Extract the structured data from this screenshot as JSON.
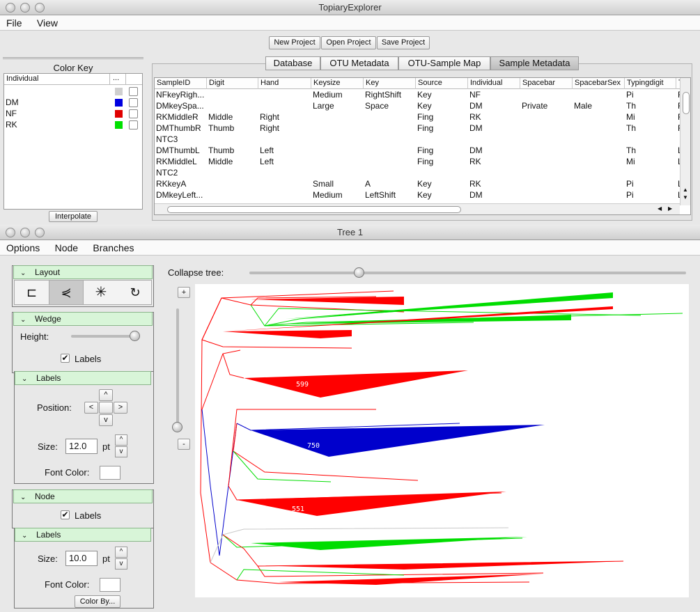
{
  "top_window": {
    "title": "TopiaryExplorer",
    "menu": [
      "File",
      "View"
    ],
    "buttons": {
      "new": "New Project",
      "open": "Open Project",
      "save": "Save Project"
    },
    "tabs": [
      "Database",
      "OTU Metadata",
      "OTU-Sample Map",
      "Sample Metadata"
    ],
    "active_tab": "Sample Metadata",
    "color_key": {
      "title": "Color Key",
      "header": "Individual",
      "header_more": "...",
      "items": [
        {
          "label": "",
          "color": "#cfcfcf"
        },
        {
          "label": "DM",
          "color": "#0000e0"
        },
        {
          "label": "NF",
          "color": "#e00000"
        },
        {
          "label": "RK",
          "color": "#00e000"
        }
      ],
      "interpolate": "Interpolate"
    },
    "table": {
      "columns": [
        "SampleID",
        "Digit",
        "Hand",
        "Keysize",
        "Key",
        "Source",
        "Individual",
        "Spacebar",
        "SpacebarSex",
        "Typingdigit",
        "T"
      ],
      "rows": [
        [
          "NFkeyRigh...",
          "",
          "",
          "Medium",
          "RightShift",
          "Key",
          "NF",
          "",
          "",
          "Pi",
          "R"
        ],
        [
          "DMkeySpa...",
          "",
          "",
          "Large",
          "Space",
          "Key",
          "DM",
          "Private",
          "Male",
          "Th",
          "R"
        ],
        [
          "RKMiddleR",
          "Middle",
          "Right",
          "",
          "",
          "Fing",
          "RK",
          "",
          "",
          "Mi",
          "R"
        ],
        [
          "DMThumbR",
          "Thumb",
          "Right",
          "",
          "",
          "Fing",
          "DM",
          "",
          "",
          "Th",
          "R"
        ],
        [
          "NTC3",
          "",
          "",
          "",
          "",
          "",
          "",
          "",
          "",
          "",
          ""
        ],
        [
          "DMThumbL",
          "Thumb",
          "Left",
          "",
          "",
          "Fing",
          "DM",
          "",
          "",
          "Th",
          "L"
        ],
        [
          "RKMiddleL",
          "Middle",
          "Left",
          "",
          "",
          "Fing",
          "RK",
          "",
          "",
          "Mi",
          "L"
        ],
        [
          "NTC2",
          "",
          "",
          "",
          "",
          "",
          "",
          "",
          "",
          "",
          ""
        ],
        [
          "RKkeyA",
          "",
          "",
          "Small",
          "A",
          "Key",
          "RK",
          "",
          "",
          "Pi",
          "L"
        ],
        [
          "DMkeyLeft...",
          "",
          "",
          "Medium",
          "LeftShift",
          "Key",
          "DM",
          "",
          "",
          "Pi",
          "L"
        ]
      ]
    }
  },
  "tree_window": {
    "title": "Tree 1",
    "menu": [
      "Options",
      "Node",
      "Branches"
    ],
    "collapse_label": "Collapse tree:",
    "collapse_value": 0.25,
    "zoom_in": "+",
    "zoom_out": "-",
    "layout_panel": {
      "title": "Layout",
      "icons": [
        "rectangular-layout-icon",
        "slanted-layout-icon",
        "radial-layout-icon",
        "polar-layout-icon"
      ]
    },
    "wedge_panel": {
      "title": "Wedge",
      "height_label": "Height:",
      "height_value": 1.0,
      "labels_checkbox": "Labels",
      "labels_checked": true
    },
    "wedge_labels_panel": {
      "title": "Labels",
      "position_label": "Position:",
      "up": "^",
      "down": "v",
      "left": "<",
      "right": ">",
      "size_label": "Size:",
      "size_value": "12.0",
      "unit": "pt",
      "font_color_label": "Font Color:"
    },
    "node_panel": {
      "title": "Node",
      "labels_checkbox": "Labels",
      "labels_checked": true
    },
    "node_labels_panel": {
      "title": "Labels",
      "size_label": "Size:",
      "size_value": "10.0",
      "unit": "pt",
      "font_color_label": "Font Color:",
      "color_by": "Color By..."
    },
    "tree_labels": [
      "599",
      "750",
      "551"
    ],
    "colors": {
      "red": "#ff0000",
      "blue": "#0000cc",
      "green": "#00dd00",
      "gray": "#c8c8c8"
    }
  }
}
